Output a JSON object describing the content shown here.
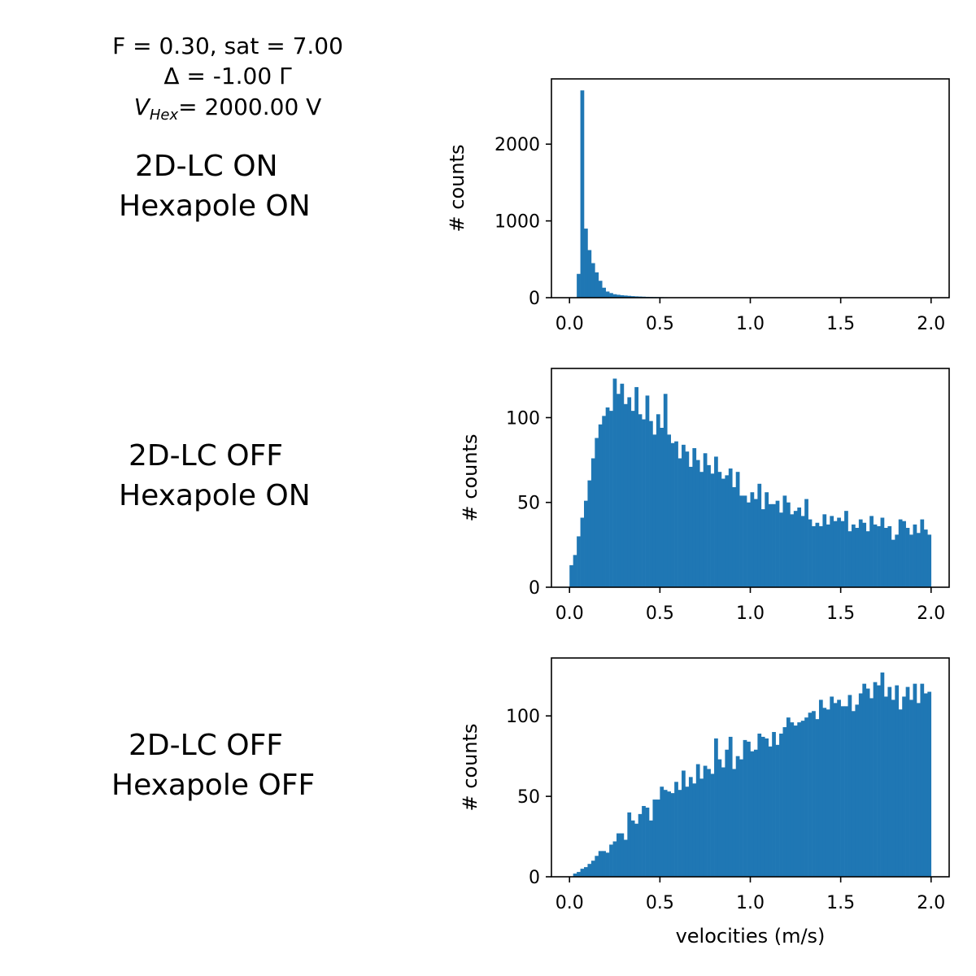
{
  "header": {
    "line1": "F = 0.30, sat = 7.00",
    "line2": "Δ = -1.00 Γ",
    "vhex_symbol": "V",
    "vhex_subscript": "Hex",
    "vhex_value": "= 2000.00 V"
  },
  "panel_labels": [
    {
      "line1": "2D-LC ON",
      "line2": "Hexapole ON"
    },
    {
      "line1": "2D-LC OFF",
      "line2": "Hexapole ON"
    },
    {
      "line1": "2D-LC OFF",
      "line2": "Hexapole OFF"
    }
  ],
  "chart_data": [
    {
      "type": "bar",
      "subtype": "histogram",
      "color": "#1f77b4",
      "bin_edges_start": 0.0,
      "bin_edges_end": 2.0,
      "bins": 100,
      "xlim": [
        -0.1,
        2.1
      ],
      "ylim": [
        0,
        2850
      ],
      "xticks": [
        0.0,
        0.5,
        1.0,
        1.5,
        2.0
      ],
      "xtick_labels": [
        "0.0",
        "0.5",
        "1.0",
        "1.5",
        "2.0"
      ],
      "yticks": [
        0,
        1000,
        2000
      ],
      "ytick_labels": [
        "0",
        "1000",
        "2000"
      ],
      "ylabel": "# counts",
      "xlabel": "",
      "values": [
        0,
        0,
        310,
        2700,
        900,
        620,
        450,
        330,
        220,
        130,
        80,
        60,
        45,
        38,
        32,
        28,
        24,
        20,
        17,
        15,
        13,
        11,
        10,
        9,
        8,
        7,
        6,
        5,
        5,
        4,
        4,
        3,
        3,
        3,
        2,
        2,
        2,
        2,
        2,
        1,
        1,
        1,
        1,
        1,
        1,
        1,
        1,
        1,
        1,
        1,
        1,
        1,
        1,
        1,
        1,
        1,
        1,
        1,
        1,
        1,
        1,
        1,
        1,
        1,
        1,
        1,
        1,
        1,
        1,
        1,
        1,
        1,
        1,
        1,
        1,
        1,
        1,
        1,
        1,
        1,
        1,
        1,
        1,
        1,
        1,
        1,
        1,
        1,
        1,
        1,
        1,
        1,
        1,
        1,
        1,
        1,
        1,
        1,
        1,
        1
      ]
    },
    {
      "type": "bar",
      "subtype": "histogram",
      "color": "#1f77b4",
      "bin_edges_start": 0.0,
      "bin_edges_end": 2.0,
      "bins": 100,
      "xlim": [
        -0.1,
        2.1
      ],
      "ylim": [
        0,
        129
      ],
      "xticks": [
        0.0,
        0.5,
        1.0,
        1.5,
        2.0
      ],
      "xtick_labels": [
        "0.0",
        "0.5",
        "1.0",
        "1.5",
        "2.0"
      ],
      "yticks": [
        0,
        50,
        100
      ],
      "ytick_labels": [
        "0",
        "50",
        "100"
      ],
      "ylabel": "# counts",
      "xlabel": "",
      "values": [
        13,
        19,
        30,
        41,
        51,
        63,
        76,
        88,
        96,
        101,
        106,
        104,
        123,
        114,
        120,
        108,
        112,
        104,
        118,
        102,
        99,
        113,
        98,
        90,
        102,
        94,
        114,
        90,
        85,
        86,
        76,
        84,
        80,
        71,
        82,
        75,
        68,
        79,
        72,
        67,
        77,
        68,
        64,
        66,
        70,
        59,
        68,
        54,
        54,
        50,
        56,
        52,
        61,
        46,
        56,
        49,
        49,
        51,
        44,
        54,
        50,
        43,
        45,
        47,
        42,
        52,
        40,
        36,
        38,
        36,
        43,
        37,
        42,
        39,
        41,
        39,
        45,
        33,
        37,
        35,
        40,
        38,
        33,
        42,
        37,
        36,
        41,
        35,
        36,
        28,
        31,
        40,
        39,
        35,
        31,
        37,
        32,
        40,
        34,
        31
      ]
    },
    {
      "type": "bar",
      "subtype": "histogram",
      "color": "#1f77b4",
      "bin_edges_start": 0.0,
      "bin_edges_end": 2.0,
      "bins": 100,
      "xlim": [
        -0.1,
        2.1
      ],
      "ylim": [
        0,
        136
      ],
      "xticks": [
        0.0,
        0.5,
        1.0,
        1.5,
        2.0
      ],
      "xtick_labels": [
        "0.0",
        "0.5",
        "1.0",
        "1.5",
        "2.0"
      ],
      "yticks": [
        0,
        50,
        100
      ],
      "ytick_labels": [
        "0",
        "50",
        "100"
      ],
      "ylabel": "# counts",
      "xlabel": "velocities (m/s)",
      "values": [
        0,
        2,
        3,
        5,
        6,
        8,
        10,
        13,
        16,
        16,
        15,
        20,
        22,
        27,
        27,
        23,
        40,
        35,
        33,
        39,
        44,
        43,
        35,
        48,
        48,
        56,
        54,
        53,
        52,
        59,
        54,
        66,
        56,
        62,
        58,
        70,
        61,
        69,
        67,
        64,
        86,
        73,
        68,
        79,
        87,
        67,
        75,
        73,
        85,
        84,
        78,
        79,
        89,
        87,
        86,
        81,
        90,
        82,
        89,
        93,
        99,
        96,
        94,
        96,
        97,
        99,
        102,
        103,
        98,
        110,
        105,
        104,
        112,
        108,
        110,
        106,
        106,
        113,
        103,
        107,
        114,
        120,
        117,
        111,
        121,
        119,
        127,
        112,
        118,
        110,
        119,
        104,
        112,
        118,
        110,
        120,
        108,
        120,
        114,
        115
      ]
    }
  ]
}
